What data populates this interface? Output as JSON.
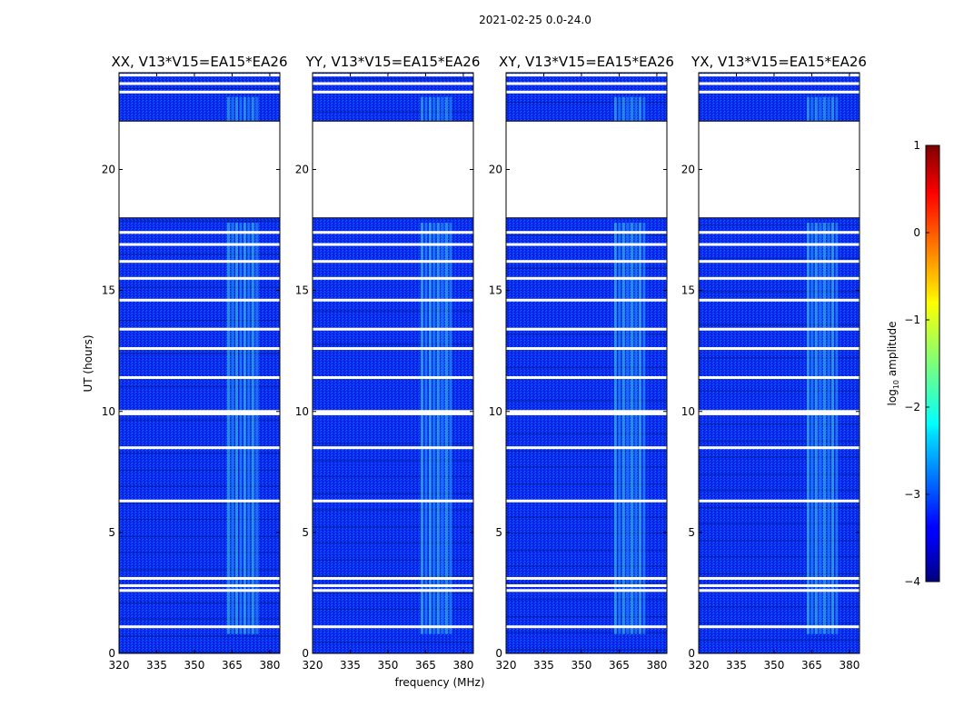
{
  "chart_data": {
    "type": "heatmap",
    "suptitle": "2021-02-25 0.0-24.0",
    "xlabel": "frequency (MHz)",
    "ylabel": "UT (hours)",
    "xlim": [
      320,
      384
    ],
    "ylim": [
      0,
      24
    ],
    "xticks": [
      320,
      335,
      350,
      365,
      380
    ],
    "yticks": [
      0,
      5,
      10,
      15,
      20
    ],
    "panels": [
      {
        "title": "XX, V13*V15=EA15*EA26"
      },
      {
        "title": "YY, V13*V15=EA15*EA26"
      },
      {
        "title": "XY, V13*V15=EA15*EA26"
      },
      {
        "title": "YX, V13*V15=EA15*EA26"
      }
    ],
    "colorbar": {
      "label": "log10 amplitude",
      "label_main": "log",
      "label_sub": "10",
      "label_rest": " amplitude",
      "range": [
        -4,
        1
      ],
      "ticks": [
        "1",
        "0",
        "−1",
        "−2",
        "−3",
        "−4"
      ],
      "colormap": "jet"
    },
    "data_gaps_ut_hours": [
      [
        18.0,
        22.0
      ]
    ],
    "flagged_rows_ut_hours": [
      23.2,
      23.55,
      23.9,
      17.4,
      16.9,
      16.2,
      15.5,
      14.6,
      13.4,
      12.6,
      11.4,
      10.0,
      9.9,
      8.5,
      6.3,
      3.1,
      2.8,
      2.6,
      1.1
    ],
    "rfi_band_mhz": [
      363,
      376
    ]
  }
}
